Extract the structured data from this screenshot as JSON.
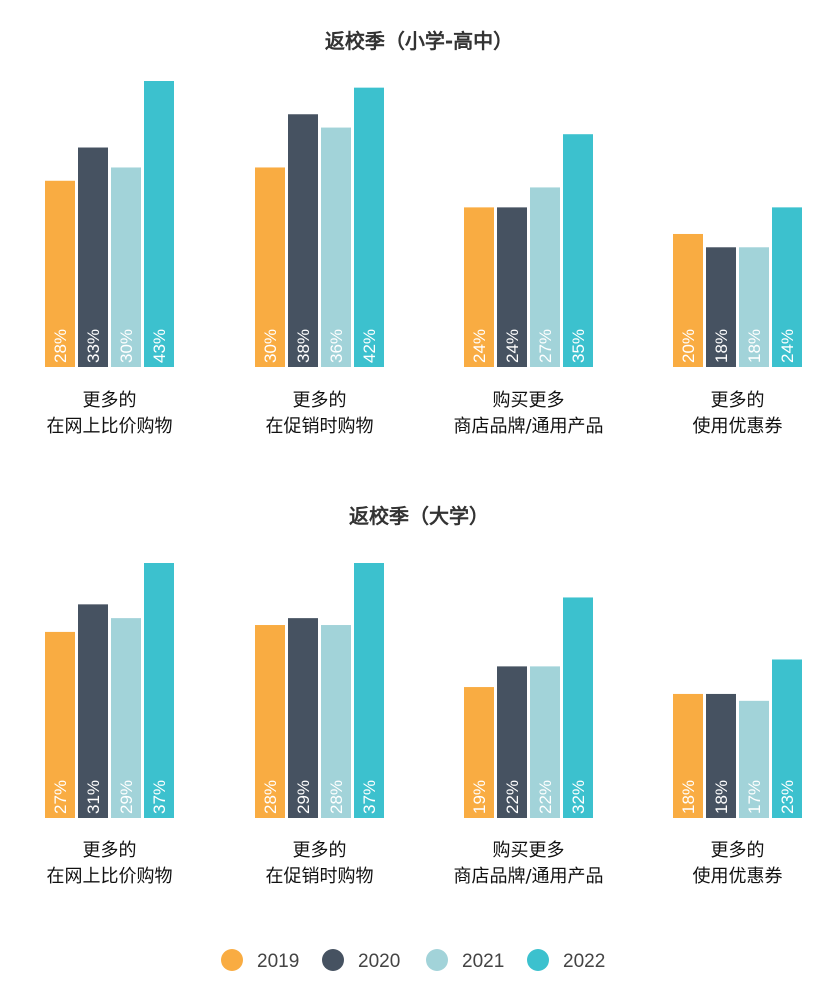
{
  "colors": {
    "2019": "#F9AC42",
    "2020": "#465261",
    "2021": "#A2D3D9",
    "2022": "#3CC1CE"
  },
  "legend": [
    "2019",
    "2020",
    "2021",
    "2022"
  ],
  "chart_data": [
    {
      "type": "bar",
      "title": "返校季（小学-高中）",
      "categories": [
        [
          "更多的",
          "在网上比价购物"
        ],
        [
          "更多的",
          "在促销时购物"
        ],
        [
          "购买更多",
          "商店品牌/通用产品"
        ],
        [
          "更多的",
          "使用优惠券"
        ]
      ],
      "series": [
        {
          "name": "2019",
          "values": [
            28,
            30,
            24,
            20
          ]
        },
        {
          "name": "2020",
          "values": [
            33,
            38,
            24,
            18
          ]
        },
        {
          "name": "2021",
          "values": [
            30,
            36,
            27,
            18
          ]
        },
        {
          "name": "2022",
          "values": [
            43,
            42,
            35,
            24
          ]
        }
      ],
      "unit": "%",
      "ylim": [
        0,
        43
      ]
    },
    {
      "type": "bar",
      "title": "返校季（大学）",
      "categories": [
        [
          "更多的",
          "在网上比价购物"
        ],
        [
          "更多的",
          "在促销时购物"
        ],
        [
          "购买更多",
          "商店品牌/通用产品"
        ],
        [
          "更多的",
          "使用优惠券"
        ]
      ],
      "series": [
        {
          "name": "2019",
          "values": [
            27,
            28,
            19,
            18
          ]
        },
        {
          "name": "2020",
          "values": [
            31,
            29,
            22,
            18
          ]
        },
        {
          "name": "2021",
          "values": [
            29,
            28,
            22,
            17
          ]
        },
        {
          "name": "2022",
          "values": [
            37,
            37,
            32,
            23
          ]
        }
      ],
      "unit": "%",
      "ylim": [
        0,
        37
      ]
    }
  ]
}
